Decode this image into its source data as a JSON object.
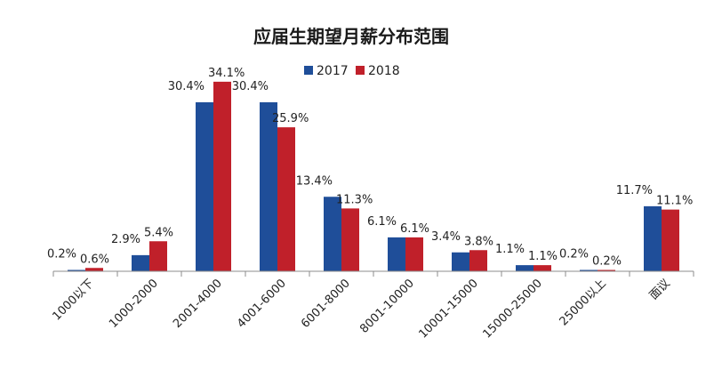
{
  "chart_data": {
    "type": "bar",
    "title": "应届生期望月薪分布范围",
    "xlabel": "",
    "ylabel": "",
    "ylim": [
      0,
      36
    ],
    "grid": false,
    "legend_position": "top-center",
    "categories": [
      "1000以下",
      "1000-2000",
      "2001-4000",
      "4001-6000",
      "6001-8000",
      "8001-10000",
      "10001-15000",
      "15000-25000",
      "25000以上",
      "面议"
    ],
    "series": [
      {
        "name": "2017",
        "color": "#1f4e99",
        "values": [
          0.2,
          2.9,
          30.4,
          30.4,
          13.4,
          6.1,
          3.4,
          1.1,
          0.2,
          11.7
        ],
        "labels": [
          "0.2%",
          "2.9%",
          "30.4%",
          "30.4%",
          "13.4%",
          "6.1%",
          "3.4%",
          "1.1%",
          "0.2%",
          "11.7%"
        ]
      },
      {
        "name": "2018",
        "color": "#c0202a",
        "values": [
          0.6,
          5.4,
          34.1,
          25.9,
          11.3,
          6.1,
          3.8,
          1.1,
          0.2,
          11.1
        ],
        "labels": [
          "0.6%",
          "5.4%",
          "34.1%",
          "25.9%",
          "11.3%",
          "6.1%",
          "3.8%",
          "1.1%",
          "0.2%",
          "11.1%"
        ]
      }
    ]
  }
}
